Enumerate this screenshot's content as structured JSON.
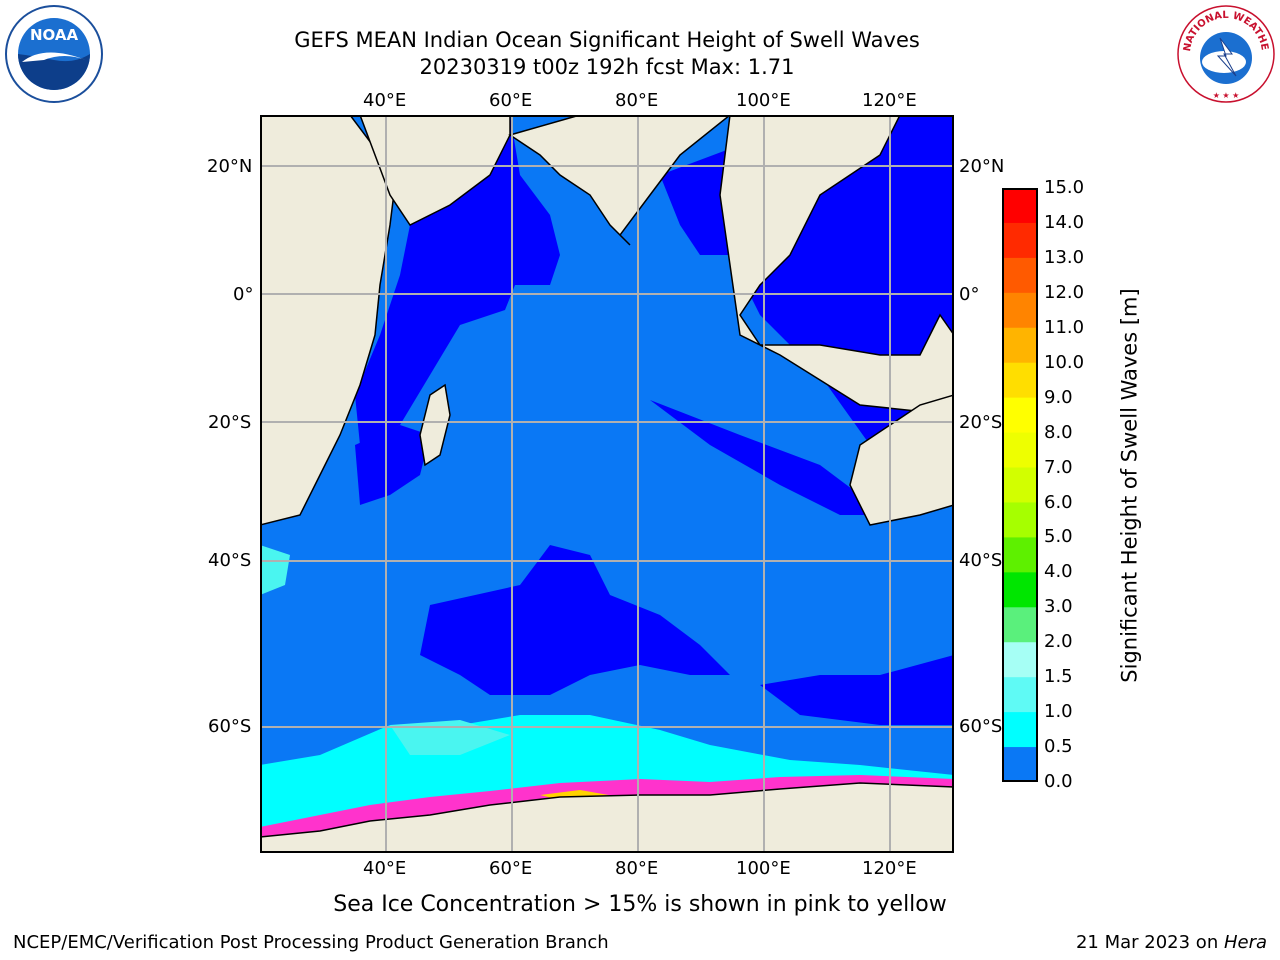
{
  "title": {
    "line1": "GEFS MEAN Indian Ocean Significant Height of Swell Waves",
    "line2": "20230319 t00z 192h fcst   Max: 1.71"
  },
  "map": {
    "lon_labels": [
      "40°E",
      "60°E",
      "80°E",
      "100°E",
      "120°E"
    ],
    "lat_labels_left": [
      "20°N",
      "0°",
      "20°S",
      "40°S",
      "60°S"
    ],
    "lat_labels_right": [
      "20°N",
      "0°",
      "20°S",
      "40°S",
      "60°S"
    ],
    "ocean_colors": {
      "deep_blue": "#0000ff",
      "mid_blue": "#0a78f5",
      "cyan": "#00ffff",
      "light_cyan": "#4af5f0",
      "land": "#efecdc",
      "ice": "#ff33cc"
    }
  },
  "colorbar": {
    "title": "Significant Height of Swell Waves [m]",
    "ticks": [
      "15.0",
      "14.0",
      "13.0",
      "12.0",
      "11.0",
      "10.0",
      "9.0",
      "8.0",
      "7.0",
      "6.0",
      "5.0",
      "4.0",
      "3.0",
      "2.0",
      "1.5",
      "1.0",
      "0.5",
      "0.0"
    ],
    "colors": [
      "#ff0000",
      "#ff2a00",
      "#ff5a00",
      "#ff8400",
      "#ffb400",
      "#ffde00",
      "#ffff00",
      "#eeff00",
      "#d2ff00",
      "#a6ff00",
      "#5ef000",
      "#00e600",
      "#5af07c",
      "#a6fff5",
      "#5ffaf5",
      "#00ffff",
      "#0a78f5",
      "#0000ff"
    ]
  },
  "logos": {
    "noaa": "NOAA",
    "nws_text": "NATIONAL WEATHER SERVICE"
  },
  "caption": "Sea Ice Concentration > 15% is shown in pink to yellow",
  "footer": {
    "left": "NCEP/EMC/Verification Post Processing Product Generation Branch",
    "date": "21 Mar 2023 on ",
    "machine": "Hera"
  }
}
